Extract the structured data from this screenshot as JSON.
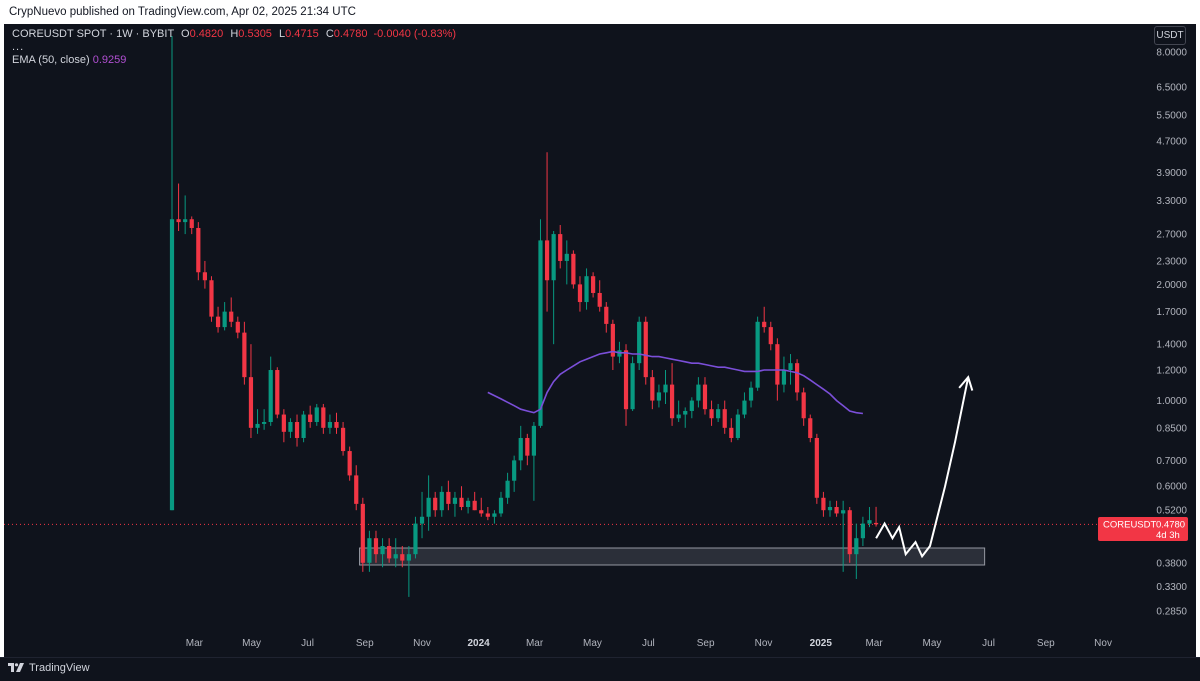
{
  "publish_bar": {
    "text": "CrypNuevo published on TradingView.com, Apr 02, 2025 21:34 UTC"
  },
  "legend": {
    "symbol_title": "COREUSDT SPOT · 1W · BYBIT",
    "open_label": "O",
    "open_value": "0.4820",
    "high_label": "H",
    "high_value": "0.5305",
    "low_label": "L",
    "low_value": "0.4715",
    "close_label": "C",
    "close_value": "0.4780",
    "change_value": "-0.0040 (-0.83%)",
    "more": "...",
    "ema_label": "EMA (50, close)",
    "ema_value": "0.9259"
  },
  "currency_button": "USDT",
  "price_tag": {
    "symbol": "COREUSDT",
    "price": "0.4780",
    "countdown": "4d 3h",
    "color": "#f23645"
  },
  "footer": {
    "brand": "TradingView"
  },
  "colors": {
    "up": "#089981",
    "down": "#f23645",
    "ema": "#7b4fd9",
    "background": "#0f131c",
    "axis_text": "#b2b5be"
  },
  "chart_data": {
    "type": "candlestick",
    "symbol": "COREUSDT",
    "timeframe": "1W",
    "y_scale": "log",
    "ylim": [
      0.27,
      9.0
    ],
    "y_ticks": [
      "8.0000",
      "6.5000",
      "5.5000",
      "4.7000",
      "3.9000",
      "3.3000",
      "2.7000",
      "2.3000",
      "2.0000",
      "1.7000",
      "1.4000",
      "1.2000",
      "1.0000",
      "0.8500",
      "0.7000",
      "0.6000",
      "0.5200",
      "0.3800",
      "0.3300",
      "0.2850"
    ],
    "x_ticks": [
      {
        "label": "Mar",
        "bold": false,
        "index": 3.4
      },
      {
        "label": "May",
        "bold": false,
        "index": 12.1
      },
      {
        "label": "Jul",
        "bold": false,
        "index": 20.6
      },
      {
        "label": "Sep",
        "bold": false,
        "index": 29.3
      },
      {
        "label": "Nov",
        "bold": false,
        "index": 38.0
      },
      {
        "label": "2024",
        "bold": true,
        "index": 46.6
      },
      {
        "label": "Mar",
        "bold": false,
        "index": 55.1
      },
      {
        "label": "May",
        "bold": false,
        "index": 63.9
      },
      {
        "label": "Jul",
        "bold": false,
        "index": 72.4
      },
      {
        "label": "Sep",
        "bold": false,
        "index": 81.1
      },
      {
        "label": "Nov",
        "bold": false,
        "index": 89.9
      },
      {
        "label": "2025",
        "bold": true,
        "index": 98.6
      },
      {
        "label": "Mar",
        "bold": false,
        "index": 106.7
      },
      {
        "label": "May",
        "bold": false,
        "index": 115.5
      },
      {
        "label": "Jul",
        "bold": false,
        "index": 124.1
      },
      {
        "label": "Sep",
        "bold": false,
        "index": 132.8
      },
      {
        "label": "Nov",
        "bold": false,
        "index": 141.5
      }
    ],
    "candles": [
      [
        0.52,
        8.8,
        0.52,
        2.95
      ],
      [
        2.95,
        3.65,
        2.75,
        2.9
      ],
      [
        2.9,
        3.4,
        2.7,
        2.95
      ],
      [
        2.95,
        3.0,
        2.7,
        2.8
      ],
      [
        2.8,
        2.9,
        2.05,
        2.15
      ],
      [
        2.15,
        2.3,
        1.95,
        2.05
      ],
      [
        2.05,
        2.1,
        1.6,
        1.65
      ],
      [
        1.65,
        1.75,
        1.5,
        1.55
      ],
      [
        1.55,
        1.8,
        1.52,
        1.7
      ],
      [
        1.7,
        1.85,
        1.55,
        1.6
      ],
      [
        1.6,
        1.65,
        1.45,
        1.5
      ],
      [
        1.5,
        1.6,
        1.1,
        1.15
      ],
      [
        1.15,
        1.4,
        0.8,
        0.85
      ],
      [
        0.85,
        0.95,
        0.82,
        0.87
      ],
      [
        0.87,
        0.95,
        0.84,
        0.88
      ],
      [
        0.88,
        1.3,
        0.86,
        1.2
      ],
      [
        1.2,
        1.22,
        0.9,
        0.92
      ],
      [
        0.92,
        0.95,
        0.78,
        0.83
      ],
      [
        0.83,
        0.9,
        0.8,
        0.88
      ],
      [
        0.88,
        0.92,
        0.76,
        0.8
      ],
      [
        0.8,
        0.94,
        0.78,
        0.92
      ],
      [
        0.92,
        0.97,
        0.85,
        0.88
      ],
      [
        0.88,
        0.98,
        0.86,
        0.96
      ],
      [
        0.96,
        0.98,
        0.82,
        0.85
      ],
      [
        0.85,
        0.92,
        0.82,
        0.88
      ],
      [
        0.88,
        0.93,
        0.82,
        0.85
      ],
      [
        0.85,
        0.88,
        0.72,
        0.74
      ],
      [
        0.74,
        0.76,
        0.62,
        0.64
      ],
      [
        0.64,
        0.68,
        0.52,
        0.54
      ],
      [
        0.54,
        0.56,
        0.36,
        0.38
      ],
      [
        0.38,
        0.46,
        0.36,
        0.44
      ],
      [
        0.44,
        0.46,
        0.38,
        0.4
      ],
      [
        0.4,
        0.44,
        0.37,
        0.42
      ],
      [
        0.42,
        0.44,
        0.38,
        0.39
      ],
      [
        0.39,
        0.44,
        0.37,
        0.4
      ],
      [
        0.4,
        0.42,
        0.37,
        0.385
      ],
      [
        0.385,
        0.42,
        0.31,
        0.4
      ],
      [
        0.4,
        0.5,
        0.39,
        0.48
      ],
      [
        0.48,
        0.58,
        0.44,
        0.5
      ],
      [
        0.5,
        0.64,
        0.46,
        0.56
      ],
      [
        0.56,
        0.58,
        0.5,
        0.52
      ],
      [
        0.52,
        0.6,
        0.5,
        0.58
      ],
      [
        0.58,
        0.62,
        0.52,
        0.54
      ],
      [
        0.54,
        0.58,
        0.5,
        0.56
      ],
      [
        0.56,
        0.6,
        0.52,
        0.53
      ],
      [
        0.53,
        0.56,
        0.51,
        0.55
      ],
      [
        0.55,
        0.58,
        0.52,
        0.52
      ],
      [
        0.52,
        0.56,
        0.5,
        0.51
      ],
      [
        0.51,
        0.53,
        0.49,
        0.5
      ],
      [
        0.5,
        0.52,
        0.48,
        0.51
      ],
      [
        0.51,
        0.58,
        0.5,
        0.56
      ],
      [
        0.56,
        0.65,
        0.54,
        0.62
      ],
      [
        0.62,
        0.72,
        0.58,
        0.7
      ],
      [
        0.7,
        0.86,
        0.66,
        0.8
      ],
      [
        0.8,
        0.82,
        0.68,
        0.72
      ],
      [
        0.72,
        0.88,
        0.55,
        0.86
      ],
      [
        0.86,
        2.95,
        0.85,
        2.6
      ],
      [
        2.6,
        4.4,
        1.7,
        2.05
      ],
      [
        2.05,
        2.75,
        1.4,
        2.7
      ],
      [
        2.7,
        2.85,
        2.2,
        2.3
      ],
      [
        2.3,
        2.6,
        2.0,
        2.4
      ],
      [
        2.4,
        2.45,
        1.95,
        2.0
      ],
      [
        2.0,
        2.1,
        1.7,
        1.8
      ],
      [
        1.8,
        2.2,
        1.72,
        2.1
      ],
      [
        2.1,
        2.15,
        1.85,
        1.9
      ],
      [
        1.9,
        2.05,
        1.7,
        1.75
      ],
      [
        1.75,
        1.8,
        1.5,
        1.58
      ],
      [
        1.58,
        1.62,
        1.2,
        1.3
      ],
      [
        1.3,
        1.42,
        1.25,
        1.35
      ],
      [
        1.35,
        1.4,
        0.86,
        0.95
      ],
      [
        0.95,
        1.3,
        0.94,
        1.25
      ],
      [
        1.25,
        1.65,
        1.2,
        1.6
      ],
      [
        1.6,
        1.65,
        1.1,
        1.15
      ],
      [
        1.15,
        1.2,
        0.95,
        1.0
      ],
      [
        1.0,
        1.1,
        0.96,
        1.05
      ],
      [
        1.05,
        1.2,
        0.98,
        1.1
      ],
      [
        1.1,
        1.25,
        0.86,
        0.9
      ],
      [
        0.9,
        1.0,
        0.88,
        0.92
      ],
      [
        0.92,
        0.96,
        0.85,
        0.94
      ],
      [
        0.94,
        1.02,
        0.9,
        1.0
      ],
      [
        1.0,
        1.15,
        0.96,
        1.1
      ],
      [
        1.1,
        1.15,
        0.92,
        0.95
      ],
      [
        0.95,
        1.0,
        0.86,
        0.9
      ],
      [
        0.9,
        0.98,
        0.88,
        0.95
      ],
      [
        0.95,
        1.0,
        0.82,
        0.85
      ],
      [
        0.85,
        0.9,
        0.78,
        0.8
      ],
      [
        0.8,
        0.95,
        0.79,
        0.92
      ],
      [
        0.92,
        1.05,
        0.9,
        1.0
      ],
      [
        1.0,
        1.12,
        0.96,
        1.08
      ],
      [
        1.08,
        1.65,
        1.06,
        1.6
      ],
      [
        1.6,
        1.75,
        1.5,
        1.55
      ],
      [
        1.55,
        1.6,
        1.35,
        1.4
      ],
      [
        1.4,
        1.45,
        1.0,
        1.1
      ],
      [
        1.1,
        1.3,
        1.05,
        1.2
      ],
      [
        1.2,
        1.32,
        1.1,
        1.25
      ],
      [
        1.25,
        1.28,
        1.0,
        1.05
      ],
      [
        1.05,
        1.08,
        0.86,
        0.9
      ],
      [
        0.9,
        0.92,
        0.78,
        0.8
      ],
      [
        0.8,
        0.82,
        0.54,
        0.56
      ],
      [
        0.56,
        0.58,
        0.5,
        0.52
      ],
      [
        0.52,
        0.55,
        0.5,
        0.53
      ],
      [
        0.53,
        0.55,
        0.5,
        0.51
      ],
      [
        0.51,
        0.55,
        0.36,
        0.52
      ],
      [
        0.52,
        0.53,
        0.38,
        0.4
      ],
      [
        0.4,
        0.48,
        0.345,
        0.44
      ],
      [
        0.44,
        0.5,
        0.42,
        0.48
      ],
      [
        0.48,
        0.53,
        0.47,
        0.49
      ],
      [
        0.482,
        0.5305,
        0.4715,
        0.478
      ]
    ],
    "ema": {
      "name": "EMA (50, close)",
      "start_index": 48,
      "values": [
        1.05,
        1.03,
        1.01,
        0.99,
        0.97,
        0.95,
        0.94,
        0.93,
        0.95,
        1.05,
        1.12,
        1.17,
        1.2,
        1.23,
        1.26,
        1.28,
        1.3,
        1.32,
        1.33,
        1.34,
        1.33,
        1.33,
        1.32,
        1.32,
        1.31,
        1.3,
        1.3,
        1.29,
        1.28,
        1.27,
        1.26,
        1.25,
        1.25,
        1.24,
        1.23,
        1.22,
        1.22,
        1.21,
        1.2,
        1.19,
        1.19,
        1.19,
        1.2,
        1.2,
        1.2,
        1.2,
        1.19,
        1.18,
        1.16,
        1.13,
        1.1,
        1.07,
        1.04,
        1.0,
        0.97,
        0.94,
        0.93,
        0.9259
      ]
    },
    "support_zone": {
      "low": 0.375,
      "high": 0.415,
      "from_index": 28.5,
      "to_index": 123.5
    },
    "last_price_line": 0.478,
    "projection_path": [
      [
        107.0,
        0.44
      ],
      [
        108.3,
        0.48
      ],
      [
        109.5,
        0.44
      ],
      [
        110.5,
        0.47
      ],
      [
        111.5,
        0.4
      ],
      [
        113.0,
        0.43
      ],
      [
        114.0,
        0.395
      ],
      [
        115.2,
        0.42
      ],
      [
        117.5,
        0.6
      ],
      [
        119.0,
        0.78
      ],
      [
        121.0,
        1.15
      ]
    ]
  }
}
